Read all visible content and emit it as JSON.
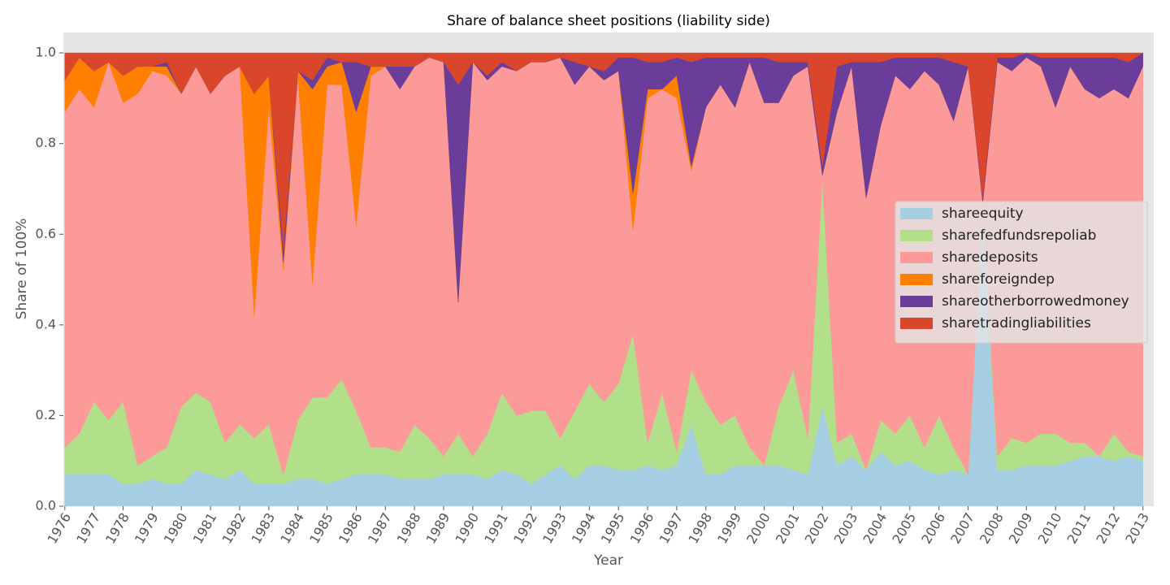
{
  "chart_data": {
    "type": "stacked_area",
    "title": "Share of balance sheet positions (liability side)",
    "x_label": "Year",
    "y_label": "Share of 100%",
    "x": [
      1976.0,
      1976.5,
      1977.0,
      1977.5,
      1978.0,
      1978.5,
      1979.0,
      1979.5,
      1980.0,
      1980.5,
      1981.0,
      1981.5,
      1982.0,
      1982.5,
      1983.0,
      1983.5,
      1984.0,
      1984.5,
      1985.0,
      1985.5,
      1986.0,
      1986.5,
      1987.0,
      1987.5,
      1988.0,
      1988.5,
      1989.0,
      1989.5,
      1990.0,
      1990.5,
      1991.0,
      1991.5,
      1992.0,
      1992.5,
      1993.0,
      1993.5,
      1994.0,
      1994.5,
      1995.0,
      1995.5,
      1996.0,
      1996.5,
      1997.0,
      1997.5,
      1998.0,
      1998.5,
      1999.0,
      1999.5,
      2000.0,
      2000.5,
      2001.0,
      2001.5,
      2002.0,
      2002.5,
      2003.0,
      2003.5,
      2004.0,
      2004.5,
      2005.0,
      2005.5,
      2006.0,
      2006.5,
      2007.0,
      2007.5,
      2008.0,
      2008.5,
      2009.0,
      2009.5,
      2010.0,
      2010.5,
      2011.0,
      2011.5,
      2012.0,
      2012.5,
      2013.0
    ],
    "series": [
      {
        "name": "shareequity",
        "color": "#a6cee3",
        "values": [
          0.07,
          0.07,
          0.07,
          0.07,
          0.05,
          0.05,
          0.06,
          0.05,
          0.05,
          0.08,
          0.07,
          0.06,
          0.08,
          0.05,
          0.05,
          0.05,
          0.06,
          0.06,
          0.05,
          0.06,
          0.07,
          0.07,
          0.07,
          0.06,
          0.06,
          0.06,
          0.07,
          0.07,
          0.07,
          0.06,
          0.08,
          0.07,
          0.05,
          0.07,
          0.09,
          0.06,
          0.09,
          0.09,
          0.08,
          0.08,
          0.09,
          0.08,
          0.09,
          0.18,
          0.07,
          0.07,
          0.09,
          0.09,
          0.09,
          0.09,
          0.08,
          0.07,
          0.22,
          0.09,
          0.11,
          0.08,
          0.12,
          0.09,
          0.1,
          0.08,
          0.07,
          0.08,
          0.07,
          0.65,
          0.08,
          0.08,
          0.09,
          0.09,
          0.09,
          0.1,
          0.11,
          0.11,
          0.1,
          0.11,
          0.1
        ]
      },
      {
        "name": "sharefedfundsrepoliab",
        "color": "#b2df8a",
        "values": [
          0.06,
          0.09,
          0.16,
          0.12,
          0.18,
          0.04,
          0.05,
          0.08,
          0.17,
          0.17,
          0.16,
          0.08,
          0.1,
          0.1,
          0.13,
          0.02,
          0.13,
          0.18,
          0.19,
          0.22,
          0.14,
          0.06,
          0.06,
          0.06,
          0.12,
          0.09,
          0.04,
          0.09,
          0.04,
          0.1,
          0.17,
          0.13,
          0.16,
          0.14,
          0.06,
          0.15,
          0.18,
          0.14,
          0.19,
          0.3,
          0.05,
          0.17,
          0.03,
          0.12,
          0.16,
          0.11,
          0.11,
          0.04,
          0,
          0.13,
          0.22,
          0.08,
          0.5,
          0.05,
          0.05,
          0,
          0.07,
          0.07,
          0.1,
          0.05,
          0.13,
          0.05,
          0,
          0,
          0.03,
          0.07,
          0.05,
          0.07,
          0.07,
          0.04,
          0.03,
          0,
          0.06,
          0.01,
          0.01
        ]
      },
      {
        "name": "sharedeposits",
        "color": "#fb9a99",
        "values": [
          0.74,
          0.76,
          0.65,
          0.79,
          0.66,
          0.82,
          0.85,
          0.82,
          0.69,
          0.72,
          0.68,
          0.81,
          0.79,
          0.27,
          0.7,
          0.45,
          0.76,
          0.25,
          0.69,
          0.65,
          0.41,
          0.82,
          0.84,
          0.8,
          0.79,
          0.84,
          0.87,
          0.29,
          0.87,
          0.78,
          0.72,
          0.76,
          0.77,
          0.77,
          0.84,
          0.72,
          0.7,
          0.71,
          0.69,
          0.23,
          0.76,
          0.67,
          0.78,
          0.44,
          0.65,
          0.75,
          0.68,
          0.85,
          0.8,
          0.67,
          0.65,
          0.82,
          0.01,
          0.73,
          0.81,
          0.6,
          0.65,
          0.79,
          0.72,
          0.83,
          0.73,
          0.72,
          0.9,
          0.02,
          0.87,
          0.81,
          0.85,
          0.81,
          0.72,
          0.83,
          0.78,
          0.79,
          0.76,
          0.78,
          0.86
        ]
      },
      {
        "name": "shareforeigndep",
        "color": "#ff7f00",
        "values": [
          0.07,
          0.07,
          0.08,
          0,
          0.06,
          0.06,
          0.01,
          0.02,
          0,
          0,
          0,
          0,
          0,
          0.49,
          0.07,
          0.02,
          0.01,
          0.43,
          0.04,
          0.05,
          0.25,
          0.02,
          0,
          0,
          0,
          0,
          0,
          0,
          0,
          0,
          0,
          0,
          0,
          0,
          0,
          0,
          0,
          0,
          0,
          0.08,
          0.02,
          0,
          0.05,
          0.01,
          0,
          0,
          0,
          0,
          0,
          0,
          0,
          0,
          0,
          0,
          0,
          0,
          0,
          0,
          0,
          0,
          0,
          0,
          0,
          0,
          0,
          0,
          0,
          0,
          0,
          0,
          0,
          0,
          0,
          0,
          0
        ]
      },
      {
        "name": "shareotherborrowedmoney",
        "color": "#6a3d9a",
        "values": [
          0,
          0,
          0,
          0,
          0,
          0,
          0,
          0.01,
          0,
          0,
          0,
          0,
          0,
          0,
          0,
          0.03,
          0,
          0.02,
          0.02,
          0,
          0.11,
          0,
          0,
          0.05,
          0,
          0,
          0,
          0.48,
          0,
          0.01,
          0.01,
          0,
          0,
          0,
          0,
          0.05,
          0,
          0.02,
          0.03,
          0.3,
          0.06,
          0.06,
          0.04,
          0.23,
          0.11,
          0.06,
          0.11,
          0.01,
          0.1,
          0.09,
          0.03,
          0.01,
          0.02,
          0.1,
          0.01,
          0.3,
          0.14,
          0.04,
          0.07,
          0.03,
          0.06,
          0.13,
          0,
          0.01,
          0.01,
          0.03,
          0.01,
          0.02,
          0.11,
          0.02,
          0.07,
          0.09,
          0.07,
          0.08,
          0.03
        ]
      },
      {
        "name": "sharetradingliabilities",
        "color": "#d9462c",
        "values": [
          0.06,
          0.01,
          0.04,
          0.02,
          0.05,
          0.03,
          0.03,
          0.02,
          0.09,
          0.03,
          0.09,
          0.05,
          0.03,
          0.09,
          0.05,
          0.43,
          0.04,
          0.06,
          0.01,
          0.02,
          0.02,
          0.03,
          0.03,
          0.03,
          0.03,
          0.01,
          0.02,
          0.07,
          0.02,
          0.05,
          0.02,
          0.04,
          0.02,
          0.02,
          0.01,
          0.02,
          0.03,
          0.04,
          0.01,
          0.01,
          0.02,
          0.02,
          0.01,
          0.02,
          0.01,
          0.01,
          0.01,
          0.01,
          0.01,
          0.02,
          0.02,
          0.02,
          0.25,
          0.03,
          0.02,
          0.02,
          0.02,
          0.01,
          0.01,
          0.01,
          0.01,
          0.02,
          0.03,
          0.32,
          0.01,
          0.01,
          0,
          0.01,
          0.01,
          0.01,
          0.01,
          0.01,
          0.01,
          0.02,
          0
        ]
      }
    ],
    "xlim": [
      1975.95,
      2013.37
    ],
    "ylim": [
      0,
      1.045
    ],
    "xticks": [
      1976,
      1977,
      1978,
      1979,
      1980,
      1981,
      1982,
      1983,
      1984,
      1985,
      1986,
      1987,
      1988,
      1989,
      1990,
      1991,
      1992,
      1993,
      1994,
      1995,
      1996,
      1997,
      1998,
      1999,
      2000,
      2001,
      2002,
      2003,
      2004,
      2005,
      2006,
      2007,
      2008,
      2009,
      2010,
      2011,
      2012,
      2013
    ],
    "yticks": [
      {
        "value": 0,
        "label": "0.0"
      },
      0.2,
      0.4,
      0.6,
      0.8,
      {
        "value": 1,
        "label": "1.0"
      }
    ],
    "legend": "center right"
  }
}
